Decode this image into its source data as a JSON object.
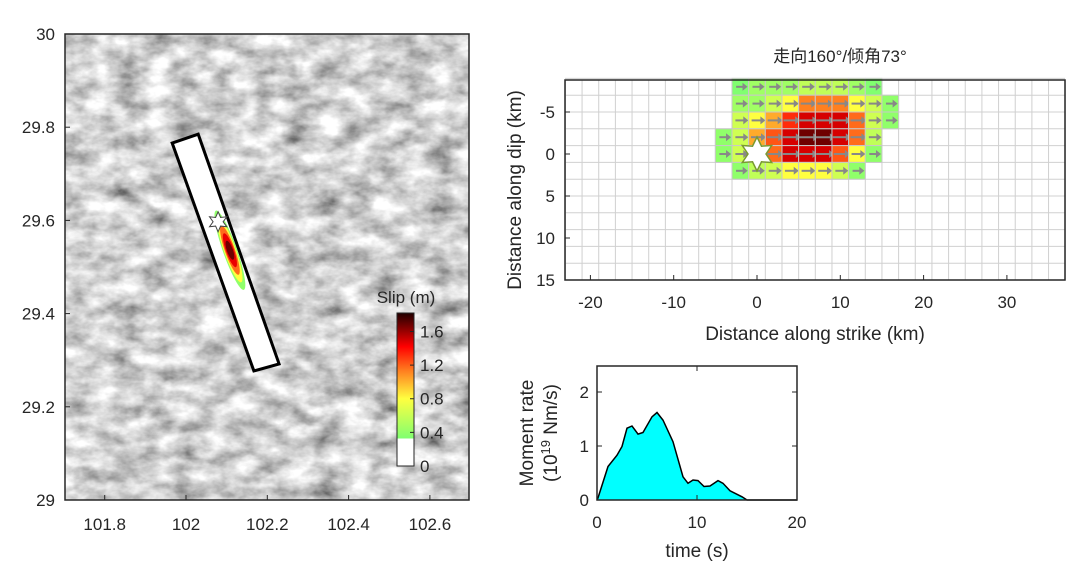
{
  "chart_data": [
    {
      "type": "heatmap",
      "name": "map",
      "xlim": [
        101.7,
        102.7
      ],
      "ylim": [
        29,
        30
      ],
      "xticks": [
        "101.8",
        "102",
        "102.2",
        "102.4",
        "102.6"
      ],
      "xtick_values": [
        101.8,
        102.0,
        102.2,
        102.4,
        102.6
      ],
      "yticks": [
        "29",
        "29.2",
        "29.4",
        "29.6",
        "29.8",
        "30"
      ],
      "ytick_values": [
        29,
        29.2,
        29.4,
        29.6,
        29.8,
        30
      ],
      "fault_plane_corners": [
        [
          101.966,
          29.766
        ],
        [
          102.03,
          29.785
        ],
        [
          102.229,
          29.292
        ],
        [
          102.167,
          29.277
        ]
      ],
      "epicenter": [
        102.079,
        29.597
      ],
      "slip_patch_center": [
        102.108,
        29.536
      ],
      "colorbar": {
        "label": "Slip (m)",
        "range": [
          0,
          1.82
        ],
        "ticks": [
          "0",
          "0.4",
          "0.8",
          "1.2",
          "1.6"
        ],
        "tick_values": [
          0,
          0.4,
          0.8,
          1.2,
          1.6
        ]
      }
    },
    {
      "type": "heatmap",
      "name": "slip-distribution",
      "title": "走向160°/倾角73°",
      "xlabel": "Distance along strike (km)",
      "ylabel": "Distance along dip (km)",
      "xlim": [
        -23,
        37
      ],
      "ylim": [
        -9,
        15
      ],
      "xticks": [
        "-20",
        "-10",
        "0",
        "10",
        "20",
        "30"
      ],
      "xtick_values": [
        -20,
        -10,
        0,
        10,
        20,
        30
      ],
      "yticks": [
        "-5",
        "0",
        "5",
        "10",
        "15"
      ],
      "ytick_values": [
        -5,
        0,
        5,
        10,
        15
      ],
      "cell_size_km": 2,
      "cell_col_left_edges_km": [
        -5,
        -3,
        -1,
        1,
        3,
        5,
        7,
        9,
        11,
        13,
        15
      ],
      "cell_row_top_edges_km": [
        -9,
        -7,
        -5,
        -3,
        -1,
        1
      ],
      "slip_m": [
        [
          0,
          0.4,
          0.5,
          0.5,
          0.5,
          0.6,
          0.6,
          0.6,
          0.5,
          0.4,
          0
        ],
        [
          0,
          0.5,
          0.5,
          0.65,
          0.8,
          1.1,
          1.1,
          1.1,
          0.8,
          0.65,
          0.45
        ],
        [
          0,
          0.65,
          0.8,
          1.0,
          1.3,
          1.5,
          1.5,
          1.5,
          1.15,
          0.65,
          0.45
        ],
        [
          0.45,
          0.65,
          1.0,
          1.2,
          1.5,
          1.75,
          1.75,
          1.5,
          1.15,
          0.6,
          0
        ],
        [
          0.45,
          0.65,
          0.8,
          1.15,
          1.5,
          1.5,
          1.5,
          1.2,
          0.8,
          0.45,
          0
        ],
        [
          0,
          0.45,
          0.6,
          0.65,
          0.8,
          0.8,
          0.8,
          0.65,
          0.45,
          0,
          0
        ]
      ],
      "rake_deg": 0,
      "hypocenter": [
        0,
        0
      ]
    },
    {
      "type": "area",
      "name": "moment-rate",
      "xlabel": "time (s)",
      "ylabel_line1": "Moment rate",
      "ylabel_line2_prefix": "(10",
      "ylabel_line2_exp": "19",
      "ylabel_line2_suffix": " Nm/s)",
      "xlim": [
        0,
        20
      ],
      "ylim": [
        0,
        2.5
      ],
      "xticks": [
        "0",
        "10",
        "20"
      ],
      "xtick_values": [
        0,
        10,
        20
      ],
      "yticks": [
        "0",
        "1",
        "2"
      ],
      "ytick_values": [
        0,
        1,
        2
      ],
      "fill_color": "#00ffff",
      "x": [
        0,
        0.1,
        1.1,
        2.0,
        2.5,
        3.0,
        3.5,
        4.1,
        4.6,
        5.5,
        6.0,
        6.6,
        7.6,
        8.6,
        9.1,
        9.6,
        10.1,
        10.7,
        11.3,
        12.1,
        12.6,
        13.3,
        14.5,
        15.0,
        20
      ],
      "y": [
        0,
        0.04,
        0.62,
        0.83,
        0.99,
        1.33,
        1.37,
        1.22,
        1.25,
        1.54,
        1.62,
        1.48,
        1.08,
        0.43,
        0.31,
        0.37,
        0.36,
        0.25,
        0.26,
        0.36,
        0.31,
        0.17,
        0.06,
        0,
        0
      ]
    }
  ]
}
